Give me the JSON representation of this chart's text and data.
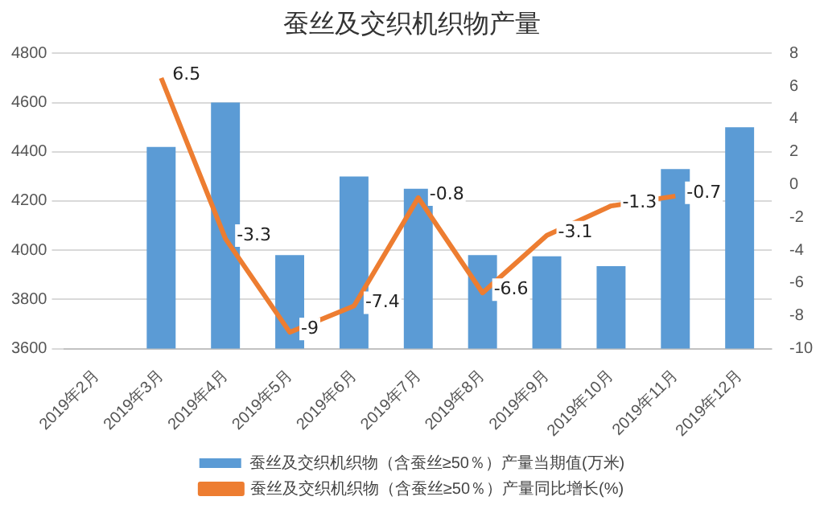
{
  "chart_data": {
    "type": "bar",
    "title": "蚕丝及交织机织物产量",
    "categories": [
      "2019年2月",
      "2019年3月",
      "2019年4月",
      "2019年5月",
      "2019年6月",
      "2019年7月",
      "2019年8月",
      "2019年9月",
      "2019年10月",
      "2019年11月",
      "2019年12月"
    ],
    "series": [
      {
        "name": "蚕丝及交织机织物（含蚕丝≥50％）产量当期值(万米)",
        "color": "#5b9bd5",
        "values": [
          null,
          4420,
          4600,
          3980,
          4300,
          4250,
          3980,
          3975,
          3935,
          4330,
          4500
        ]
      },
      {
        "name": "蚕丝及交织机织物（含蚕丝≥50％）产量同比增长(%)",
        "type": "line",
        "axis": "y2",
        "color": "#ed7d31",
        "values": [
          null,
          6.5,
          -3.3,
          -9,
          -7.4,
          -0.8,
          -6.6,
          -3.1,
          -1.3,
          -0.7,
          null
        ],
        "value_labels": [
          null,
          "6.5",
          "-3.3",
          "-9",
          "-7.4",
          "-0.8",
          "-6.6",
          "-3.1",
          "-1.3",
          "-0.7",
          null
        ]
      }
    ],
    "ylim": [
      3600,
      4800
    ],
    "yticks": [
      3600,
      3800,
      4000,
      4200,
      4400,
      4600,
      4800
    ],
    "y2lim": [
      -10,
      8
    ],
    "y2ticks": [
      -10,
      -8,
      -6,
      -4,
      -2,
      0,
      2,
      4,
      6,
      8
    ],
    "grid": "y",
    "legend": "bottom",
    "marker": "none"
  }
}
